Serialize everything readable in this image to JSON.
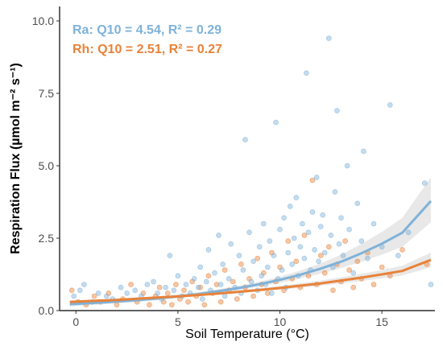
{
  "chart_data": {
    "type": "scatter",
    "xlabel": "Soil Temperature (°C)",
    "ylabel": "Respiration Flux (µmol m⁻² s⁻¹)",
    "xlim": [
      -0.8,
      17.6
    ],
    "ylim": [
      0,
      10.5
    ],
    "x_ticks": [
      0,
      5,
      10,
      15
    ],
    "y_ticks": [
      0,
      2.5,
      5,
      7.5,
      10
    ],
    "x_tick_labels": [
      "0",
      "5",
      "10",
      "15"
    ],
    "y_tick_labels": [
      "0.0",
      "2.5",
      "5.0",
      "7.5",
      "10.0"
    ],
    "grid": false,
    "colors": {
      "ra": "#7fb2d9",
      "rh": "#e8823a",
      "band": "#d9d9d9"
    },
    "annotations": [
      {
        "text": "Ra: Q10 = 4.54, R² = 0.29",
        "series": "ra",
        "position": "top-left"
      },
      {
        "text": "Rh: Q10 = 2.51, R² = 0.27",
        "series": "rh",
        "position": "top-left"
      }
    ],
    "series": [
      {
        "key": "ra",
        "fit": {
          "x": [
            -0.3,
            1,
            2,
            3,
            4,
            5,
            6,
            7,
            8,
            9,
            10,
            11,
            12,
            13,
            14,
            15,
            16,
            17.4
          ],
          "y": [
            0.22,
            0.27,
            0.31,
            0.36,
            0.42,
            0.49,
            0.57,
            0.67,
            0.78,
            0.91,
            1.06,
            1.24,
            1.45,
            1.69,
            1.98,
            2.31,
            2.69,
            3.78
          ],
          "lower": [
            0.15,
            0.2,
            0.25,
            0.3,
            0.36,
            0.43,
            0.51,
            0.61,
            0.71,
            0.83,
            0.96,
            1.11,
            1.28,
            1.47,
            1.69,
            1.93,
            2.2,
            3.05
          ],
          "upper": [
            0.3,
            0.34,
            0.38,
            0.43,
            0.49,
            0.56,
            0.64,
            0.74,
            0.86,
            1.0,
            1.17,
            1.38,
            1.63,
            1.93,
            2.3,
            2.72,
            3.2,
            4.6
          ]
        },
        "points": [
          [
            -0.1,
            0.5
          ],
          [
            0.2,
            0.7
          ],
          [
            0.4,
            0.9
          ],
          [
            0.8,
            0.3
          ],
          [
            1.1,
            0.6
          ],
          [
            1.5,
            0.5
          ],
          [
            1.8,
            0.4
          ],
          [
            2.2,
            0.8
          ],
          [
            2.5,
            0.6
          ],
          [
            2.9,
            0.7
          ],
          [
            3.2,
            0.5
          ],
          [
            3.5,
            0.9
          ],
          [
            3.8,
            1.0
          ],
          [
            4.0,
            0.6
          ],
          [
            4.2,
            0.4
          ],
          [
            4.4,
            0.8
          ],
          [
            4.6,
            1.9
          ],
          [
            4.8,
            0.7
          ],
          [
            5.0,
            1.2
          ],
          [
            5.2,
            0.5
          ],
          [
            5.4,
            0.9
          ],
          [
            5.6,
            0.6
          ],
          [
            5.8,
            1.1
          ],
          [
            6.0,
            0.8
          ],
          [
            6.1,
            1.5
          ],
          [
            6.2,
            0.4
          ],
          [
            6.4,
            1.0
          ],
          [
            6.5,
            2.1
          ],
          [
            6.6,
            0.7
          ],
          [
            6.8,
            1.3
          ],
          [
            7.0,
            2.6
          ],
          [
            7.1,
            0.9
          ],
          [
            7.2,
            1.6
          ],
          [
            7.3,
            0.5
          ],
          [
            7.5,
            1.1
          ],
          [
            7.6,
            2.3
          ],
          [
            7.8,
            0.8
          ],
          [
            8.0,
            1.9
          ],
          [
            8.1,
            0.6
          ],
          [
            8.2,
            1.4
          ],
          [
            8.3,
            5.9
          ],
          [
            8.5,
            2.7
          ],
          [
            8.6,
            1.0
          ],
          [
            8.7,
            1.7
          ],
          [
            8.9,
            0.7
          ],
          [
            9.0,
            2.2
          ],
          [
            9.1,
            1.2
          ],
          [
            9.2,
            3.0
          ],
          [
            9.3,
            0.9
          ],
          [
            9.4,
            1.5
          ],
          [
            9.5,
            2.4
          ],
          [
            9.6,
            0.6
          ],
          [
            9.7,
            1.9
          ],
          [
            9.8,
            6.5
          ],
          [
            9.9,
            1.1
          ],
          [
            10.0,
            2.8
          ],
          [
            10.1,
            1.4
          ],
          [
            10.2,
            3.2
          ],
          [
            10.3,
            0.8
          ],
          [
            10.4,
            2.0
          ],
          [
            10.5,
            3.6
          ],
          [
            10.6,
            1.6
          ],
          [
            10.7,
            2.5
          ],
          [
            10.8,
            3.9
          ],
          [
            10.9,
            1.2
          ],
          [
            11.0,
            2.2
          ],
          [
            11.1,
            3.0
          ],
          [
            11.2,
            1.8
          ],
          [
            11.3,
            8.2
          ],
          [
            11.4,
            2.7
          ],
          [
            11.5,
            1.4
          ],
          [
            11.6,
            3.4
          ],
          [
            11.7,
            2.1
          ],
          [
            11.8,
            4.6
          ],
          [
            11.9,
            1.7
          ],
          [
            12.0,
            2.9
          ],
          [
            12.1,
            3.3
          ],
          [
            12.2,
            2.0
          ],
          [
            12.4,
            9.4
          ],
          [
            12.5,
            2.6
          ],
          [
            12.6,
            1.5
          ],
          [
            12.7,
            4.1
          ],
          [
            12.8,
            6.9
          ],
          [
            12.9,
            2.3
          ],
          [
            13.0,
            3.2
          ],
          [
            13.1,
            1.9
          ],
          [
            13.3,
            5.0
          ],
          [
            13.4,
            2.8
          ],
          [
            13.6,
            1.3
          ],
          [
            13.8,
            3.7
          ],
          [
            14.0,
            2.4
          ],
          [
            14.1,
            5.5
          ],
          [
            14.3,
            1.8
          ],
          [
            14.6,
            3.0
          ],
          [
            15.0,
            2.2
          ],
          [
            15.4,
            7.1
          ],
          [
            15.8,
            1.9
          ],
          [
            16.3,
            2.7
          ],
          [
            17.1,
            4.4
          ],
          [
            17.4,
            0.9
          ]
        ]
      },
      {
        "key": "rh",
        "fit": {
          "x": [
            -0.3,
            1,
            2,
            3,
            4,
            5,
            6,
            7,
            8,
            9,
            10,
            11,
            12,
            13,
            14,
            15,
            16,
            17.4
          ],
          "y": [
            0.3,
            0.34,
            0.37,
            0.41,
            0.45,
            0.49,
            0.54,
            0.59,
            0.65,
            0.71,
            0.78,
            0.86,
            0.94,
            1.04,
            1.14,
            1.25,
            1.37,
            1.75
          ],
          "lower": [
            0.25,
            0.29,
            0.33,
            0.37,
            0.41,
            0.45,
            0.5,
            0.55,
            0.6,
            0.66,
            0.72,
            0.79,
            0.86,
            0.94,
            1.02,
            1.11,
            1.21,
            1.5
          ],
          "upper": [
            0.35,
            0.38,
            0.41,
            0.45,
            0.49,
            0.53,
            0.58,
            0.63,
            0.7,
            0.77,
            0.85,
            0.94,
            1.04,
            1.15,
            1.27,
            1.4,
            1.55,
            2.0
          ]
        },
        "points": [
          [
            -0.2,
            0.7
          ],
          [
            0.1,
            0.3
          ],
          [
            0.5,
            0.2
          ],
          [
            0.9,
            0.5
          ],
          [
            1.2,
            0.3
          ],
          [
            1.6,
            0.6
          ],
          [
            2.0,
            0.2
          ],
          [
            2.3,
            0.4
          ],
          [
            2.7,
            0.9
          ],
          [
            3.0,
            0.3
          ],
          [
            3.3,
            0.6
          ],
          [
            3.6,
            0.2
          ],
          [
            3.9,
            0.5
          ],
          [
            4.1,
            0.8
          ],
          [
            4.3,
            0.3
          ],
          [
            4.5,
            0.6
          ],
          [
            4.7,
            0.2
          ],
          [
            4.9,
            0.9
          ],
          [
            5.1,
            0.4
          ],
          [
            5.3,
            0.7
          ],
          [
            5.5,
            0.3
          ],
          [
            5.7,
            1.0
          ],
          [
            5.9,
            0.5
          ],
          [
            6.1,
            0.8
          ],
          [
            6.3,
            0.2
          ],
          [
            6.5,
            1.2
          ],
          [
            6.7,
            0.6
          ],
          [
            6.9,
            0.9
          ],
          [
            7.1,
            0.3
          ],
          [
            7.3,
            1.4
          ],
          [
            7.5,
            0.7
          ],
          [
            7.7,
            1.0
          ],
          [
            7.9,
            0.4
          ],
          [
            8.1,
            1.6
          ],
          [
            8.3,
            0.8
          ],
          [
            8.5,
            1.1
          ],
          [
            8.7,
            0.5
          ],
          [
            8.9,
            1.8
          ],
          [
            9.1,
            0.9
          ],
          [
            9.2,
            1.3
          ],
          [
            9.4,
            0.6
          ],
          [
            9.6,
            2.0
          ],
          [
            9.8,
            1.0
          ],
          [
            10.0,
            1.5
          ],
          [
            10.2,
            0.7
          ],
          [
            10.4,
            2.4
          ],
          [
            10.6,
            1.1
          ],
          [
            10.8,
            1.7
          ],
          [
            11.0,
            0.8
          ],
          [
            11.2,
            2.6
          ],
          [
            11.4,
            1.2
          ],
          [
            11.6,
            4.5
          ],
          [
            11.8,
            0.9
          ],
          [
            12.0,
            1.9
          ],
          [
            12.2,
            1.3
          ],
          [
            12.4,
            2.2
          ],
          [
            12.6,
            0.7
          ],
          [
            12.8,
            1.6
          ],
          [
            13.0,
            1.0
          ],
          [
            13.2,
            2.4
          ],
          [
            13.4,
            1.4
          ],
          [
            13.6,
            0.8
          ],
          [
            13.8,
            1.7
          ],
          [
            14.0,
            1.1
          ],
          [
            14.3,
            2.0
          ],
          [
            14.6,
            0.9
          ],
          [
            15.0,
            1.5
          ],
          [
            15.4,
            1.2
          ],
          [
            16.0,
            2.1
          ],
          [
            17.2,
            1.6
          ]
        ]
      }
    ]
  }
}
